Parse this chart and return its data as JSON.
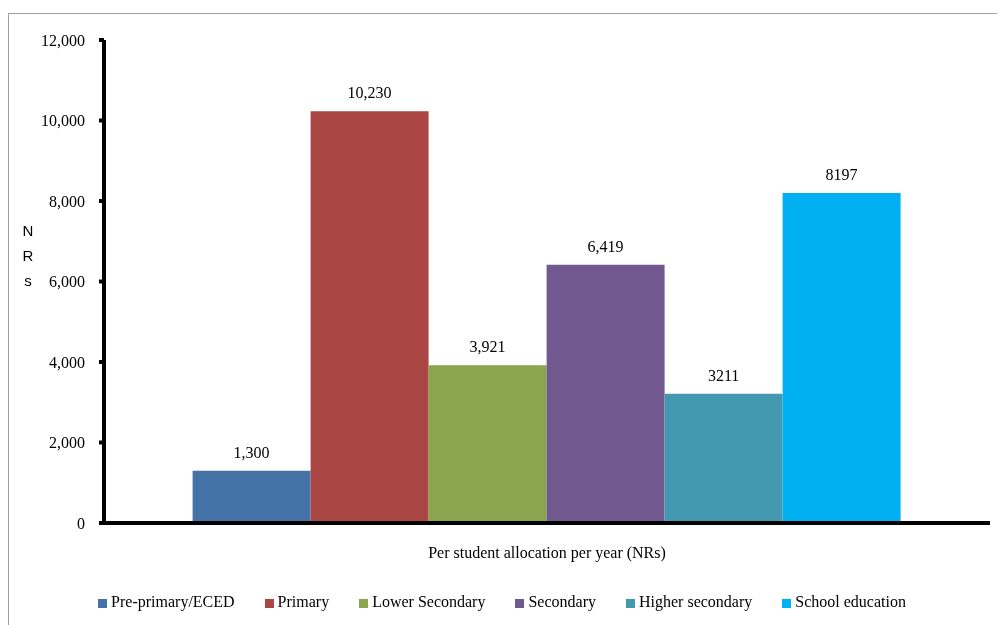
{
  "chart_data": {
    "type": "bar",
    "ylabel": "NRs",
    "categories": [
      "Per student allocation per year (NRs)"
    ],
    "series": [
      {
        "name": "Pre-primary/ECED",
        "color": "#4572a7",
        "values": [
          1300
        ],
        "value_labels": [
          "1,300"
        ]
      },
      {
        "name": "Primary",
        "color": "#aa4643",
        "values": [
          10230
        ],
        "value_labels": [
          "10,230"
        ]
      },
      {
        "name": "Lower Secondary",
        "color": "#89a54e",
        "values": [
          3921
        ],
        "value_labels": [
          "3,921"
        ]
      },
      {
        "name": "Secondary",
        "color": "#71588f",
        "values": [
          6419
        ],
        "value_labels": [
          "6,419"
        ]
      },
      {
        "name": "Higher secondary",
        "color": "#4198af",
        "values": [
          3211
        ],
        "value_labels": [
          "3211"
        ]
      },
      {
        "name": "School education",
        "color": "#00b0f0",
        "values": [
          8197
        ],
        "value_labels": [
          "8197"
        ]
      }
    ],
    "ylim": [
      0,
      12000
    ],
    "yticks": [
      0,
      {
        "value": 2000,
        "label": "2,000"
      },
      {
        "value": 4000,
        "label": "4,000"
      },
      {
        "value": 6000,
        "label": "6,000"
      },
      {
        "value": 8000,
        "label": "8,000"
      },
      {
        "value": 10000,
        "label": "10,000"
      },
      {
        "value": 12000,
        "label": "12,000"
      }
    ],
    "legend": "bottom"
  }
}
